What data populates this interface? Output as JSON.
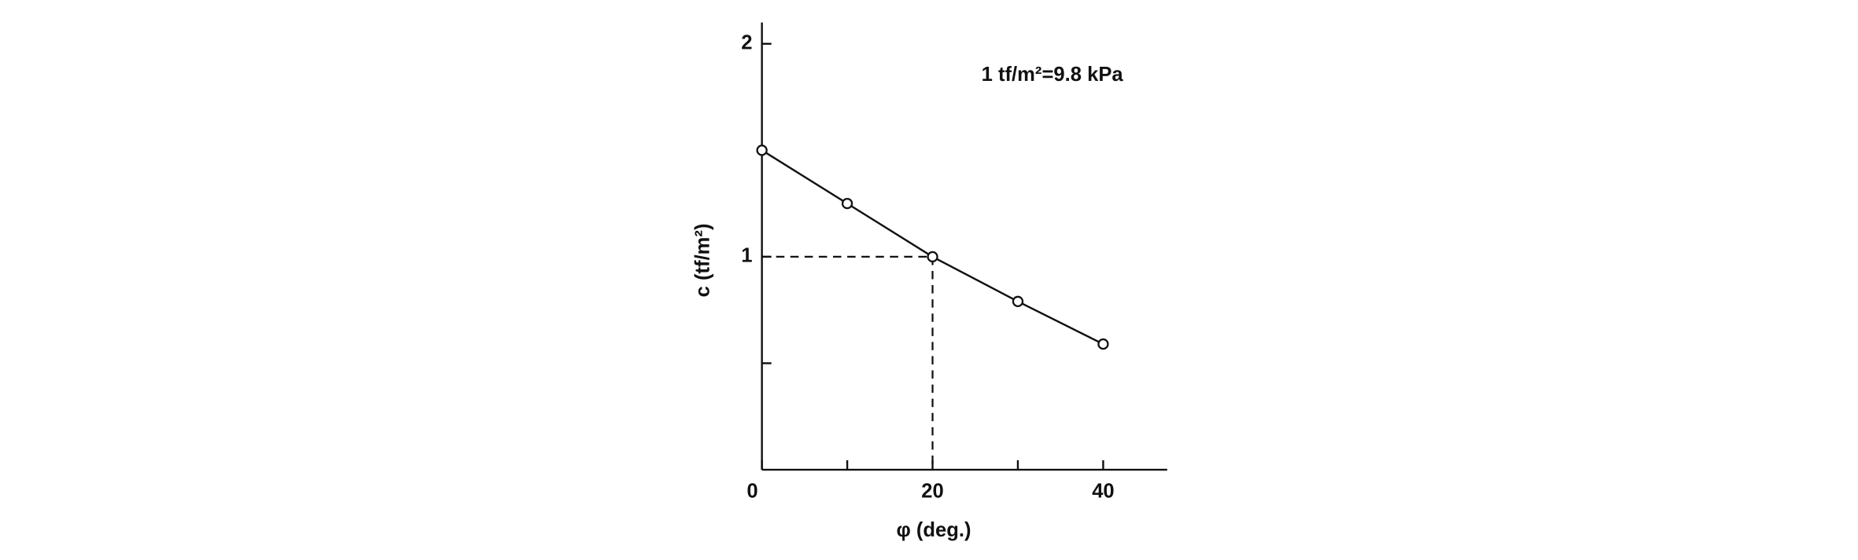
{
  "chart_data": {
    "type": "line",
    "x_label": "φ (deg.)",
    "y_label": "c (tf/m²)",
    "annotation": "1 tf/m²=9.8 kPa",
    "x": [
      0,
      10,
      20,
      30,
      40
    ],
    "series": [
      {
        "color": "#111111",
        "values": [
          1.5,
          1.25,
          1.0,
          0.79,
          0.59
        ]
      }
    ],
    "xlim": [
      0,
      47.5
    ],
    "ylim": [
      0,
      2.1
    ],
    "xticks": [
      0,
      20,
      40
    ],
    "xminor_ticks": [
      10,
      30
    ],
    "yticks": [
      1,
      2
    ],
    "yminor_ticks": [
      0.5
    ],
    "guide": {
      "x": 20,
      "y": 1
    },
    "grid": false
  }
}
